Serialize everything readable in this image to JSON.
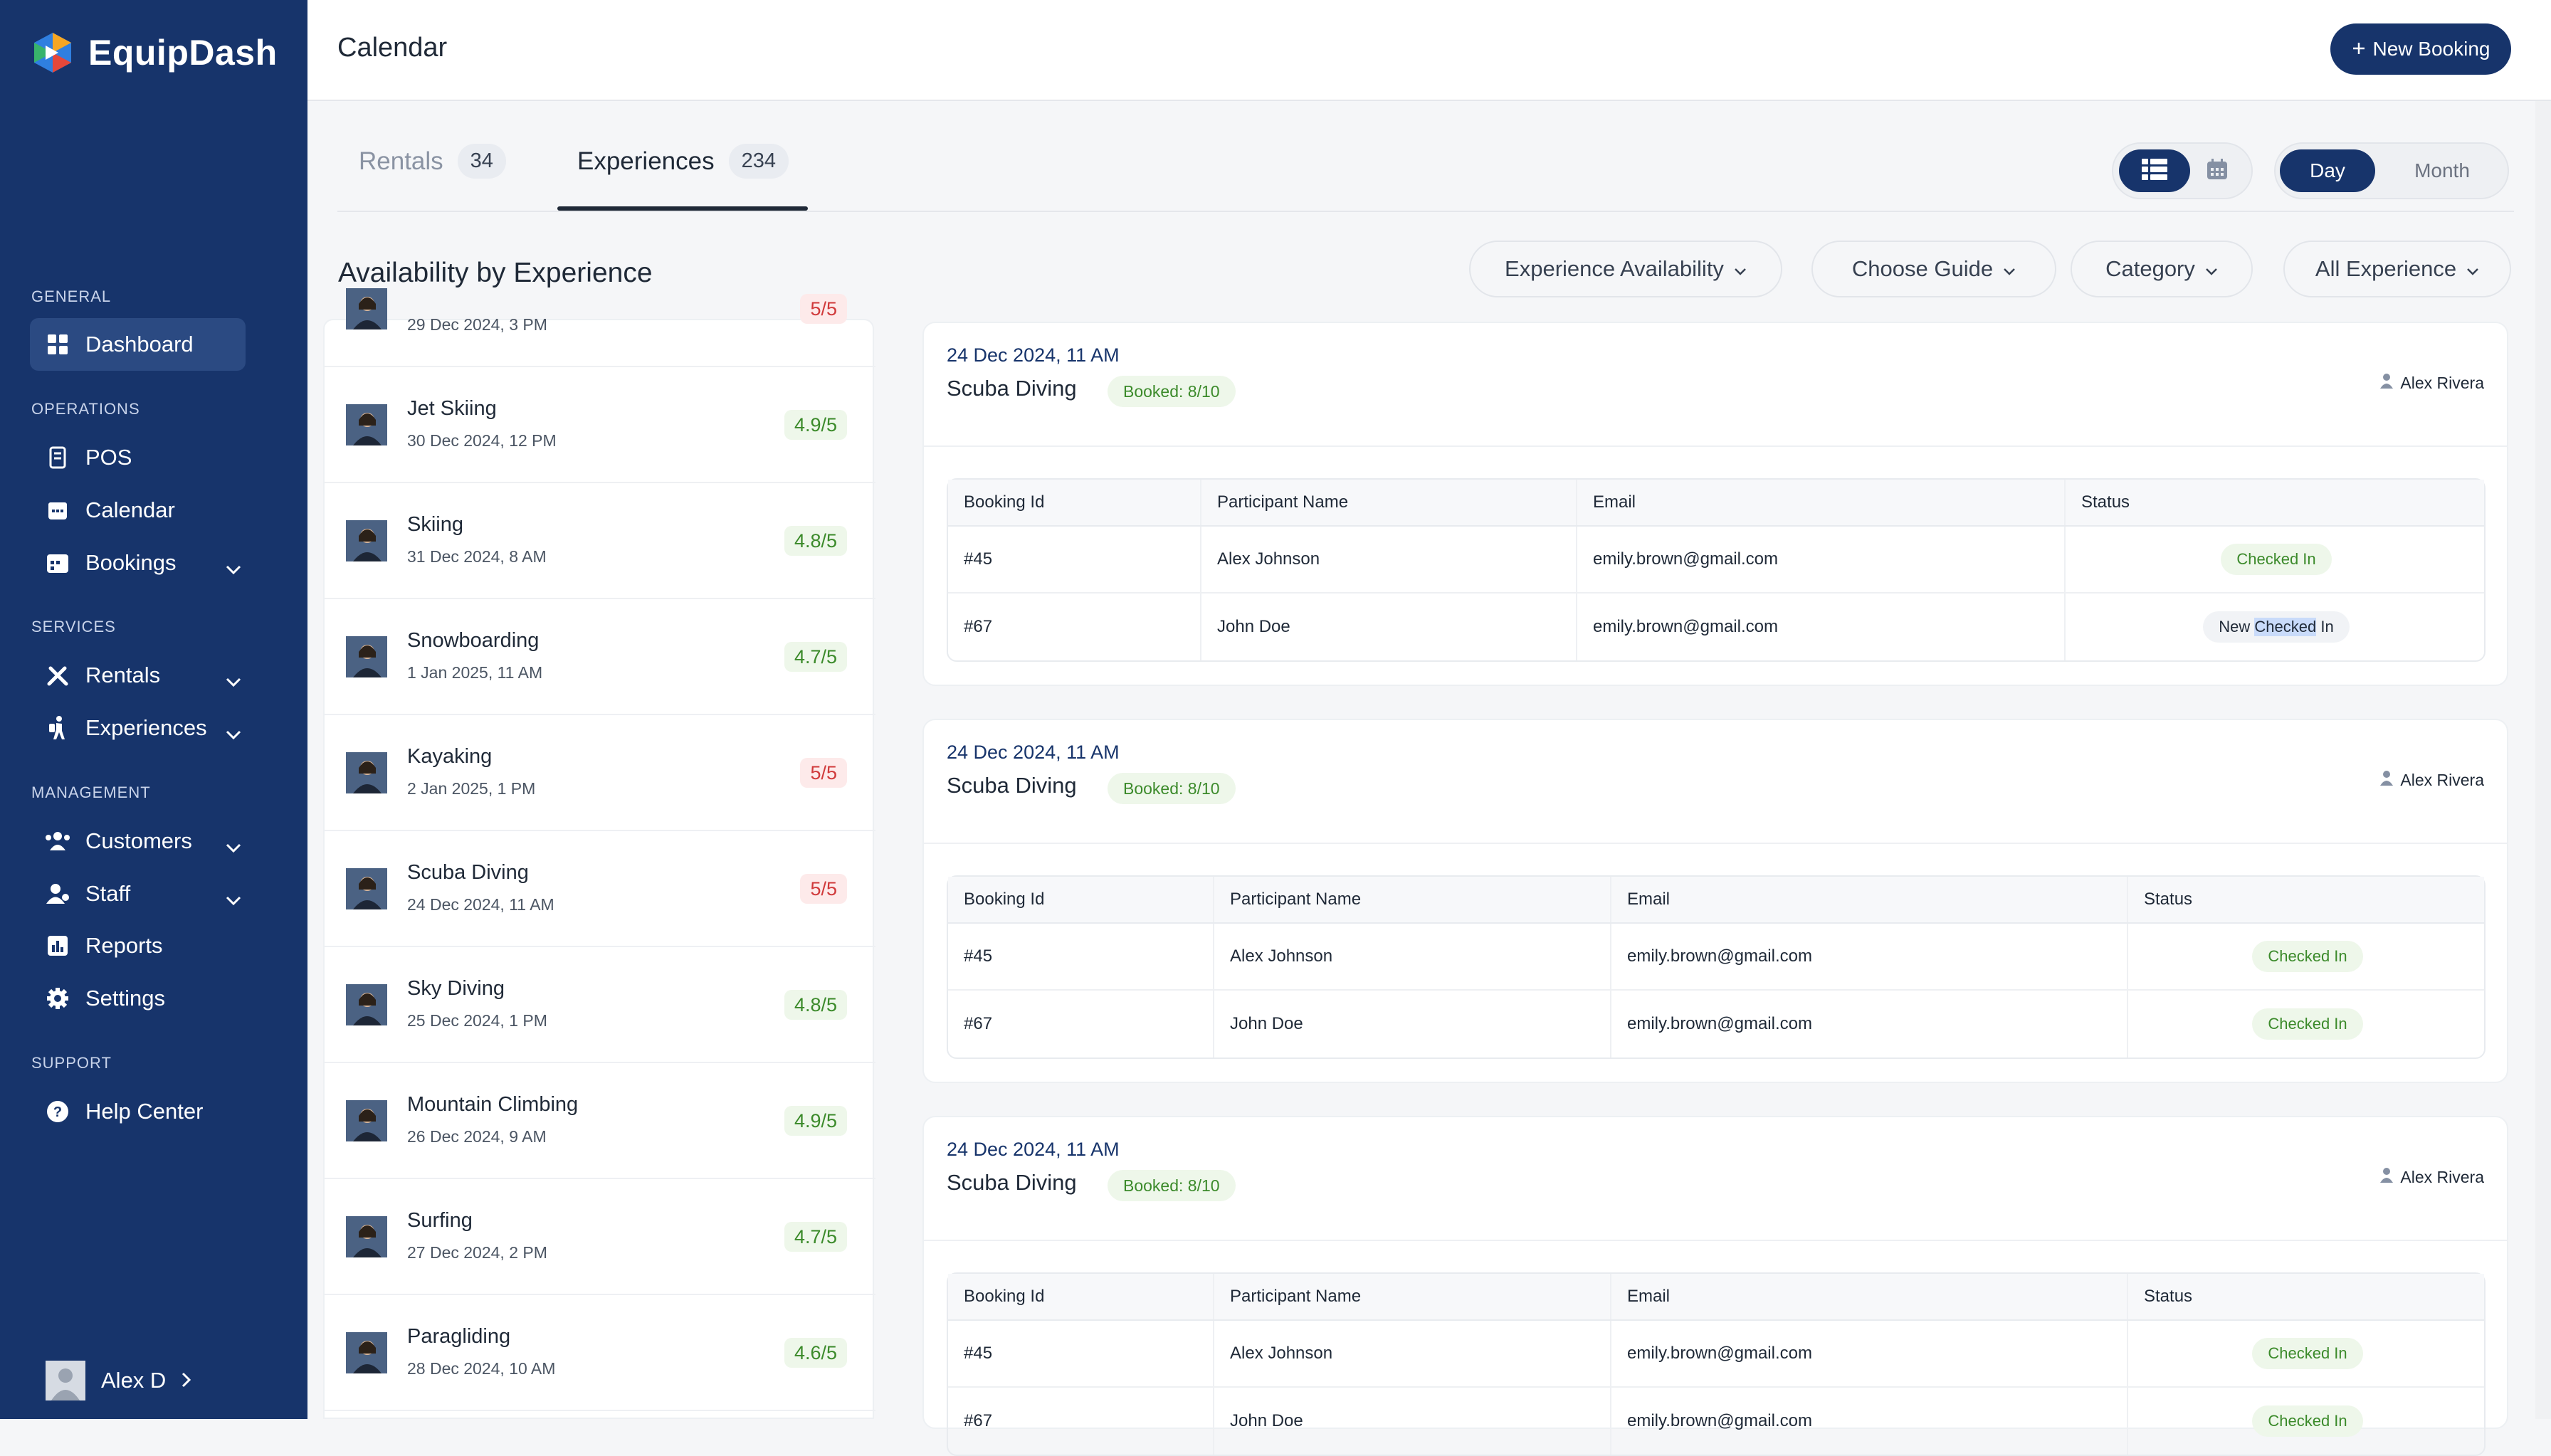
{
  "app": {
    "name": "EquipDash",
    "page_title": "Calendar"
  },
  "header": {
    "new_booking_label": "New Booking"
  },
  "sidebar": {
    "sections": [
      {
        "title": "GENERAL"
      },
      {
        "title": "OPERATIONS"
      },
      {
        "title": "SERVICES"
      },
      {
        "title": "MANAGEMENT"
      },
      {
        "title": "SUPPORT"
      }
    ],
    "items": [
      {
        "label": "Dashboard",
        "icon": "grid-icon"
      },
      {
        "label": "POS",
        "icon": "receipt-icon"
      },
      {
        "label": "Calendar",
        "icon": "calendar-icon"
      },
      {
        "label": "Bookings",
        "icon": "bookings-icon"
      },
      {
        "label": "Rentals",
        "icon": "tools-icon"
      },
      {
        "label": "Experiences",
        "icon": "hiker-icon"
      },
      {
        "label": "Customers",
        "icon": "users-icon"
      },
      {
        "label": "Staff",
        "icon": "staff-icon"
      },
      {
        "label": "Reports",
        "icon": "chart-icon"
      },
      {
        "label": "Settings",
        "icon": "gear-icon"
      },
      {
        "label": "Help Center",
        "icon": "help-icon"
      }
    ],
    "user": {
      "name": "Alex D"
    }
  },
  "tabs": [
    {
      "label": "Rentals",
      "count": "34"
    },
    {
      "label": "Experiences",
      "count": "234"
    }
  ],
  "view": {
    "day_label": "Day",
    "month_label": "Month"
  },
  "availability": {
    "title": "Availability by Experience",
    "filters": [
      "Experience Availability",
      "Choose Guide",
      "Category",
      "All Experience"
    ]
  },
  "experiences": [
    {
      "name": "",
      "date": "29 Dec 2024, 3 PM",
      "rating": "5/5",
      "status": "full"
    },
    {
      "name": "Jet Skiing",
      "date": "30 Dec 2024, 12 PM",
      "rating": "4.9/5",
      "status": "good"
    },
    {
      "name": "Skiing",
      "date": "31 Dec 2024, 8 AM",
      "rating": "4.8/5",
      "status": "good"
    },
    {
      "name": "Snowboarding",
      "date": "1 Jan 2025, 11 AM",
      "rating": "4.7/5",
      "status": "good"
    },
    {
      "name": "Kayaking",
      "date": "2 Jan 2025, 1 PM",
      "rating": "5/5",
      "status": "full"
    },
    {
      "name": "Scuba Diving",
      "date": "24 Dec 2024, 11 AM",
      "rating": "5/5",
      "status": "full"
    },
    {
      "name": "Sky Diving",
      "date": "25 Dec 2024, 1 PM",
      "rating": "4.8/5",
      "status": "good"
    },
    {
      "name": "Mountain Climbing",
      "date": "26 Dec 2024, 9 AM",
      "rating": "4.9/5",
      "status": "good"
    },
    {
      "name": "Surfing",
      "date": "27 Dec 2024, 2 PM",
      "rating": "4.7/5",
      "status": "good"
    },
    {
      "name": "Paragliding",
      "date": "28 Dec 2024, 10 AM",
      "rating": "4.6/5",
      "status": "good"
    }
  ],
  "table_headers": [
    "Booking Id",
    "Participant Name",
    "Email",
    "Status"
  ],
  "cards": [
    {
      "date": "24 Dec 2024, 11 AM",
      "title": "Scuba Diving",
      "booked": "Booked: 8/10",
      "guide": "Alex Rivera",
      "rows": [
        {
          "id": "#45",
          "name": "Alex Johnson",
          "email": "emily.brown@gmail.com",
          "status": "Checked In"
        },
        {
          "id": "#67",
          "name": "John Doe",
          "email": "emily.brown@gmail.com",
          "status_pre": "New ",
          "status_hl": "Checked",
          "status_post": " In"
        }
      ]
    },
    {
      "date": "24 Dec 2024, 11 AM",
      "title": "Scuba Diving",
      "booked": "Booked: 8/10",
      "guide": "Alex Rivera",
      "rows": [
        {
          "id": "#45",
          "name": "Alex Johnson",
          "email": "emily.brown@gmail.com",
          "status": "Checked In"
        },
        {
          "id": "#67",
          "name": "John Doe",
          "email": "emily.brown@gmail.com",
          "status": "Checked In"
        }
      ]
    },
    {
      "date": "24 Dec 2024, 11 AM",
      "title": "Scuba Diving",
      "booked": "Booked: 8/10",
      "guide": "Alex Rivera",
      "rows": [
        {
          "id": "#45",
          "name": "Alex Johnson",
          "email": "emily.brown@gmail.com",
          "status": "Checked In"
        },
        {
          "id": "#67",
          "name": "John Doe",
          "email": "emily.brown@gmail.com",
          "status": "Checked In"
        }
      ]
    }
  ],
  "colors": {
    "sidebar": "#17346b",
    "accent": "#17346b",
    "success": "#3b8a2a",
    "danger": "#d0393a"
  }
}
